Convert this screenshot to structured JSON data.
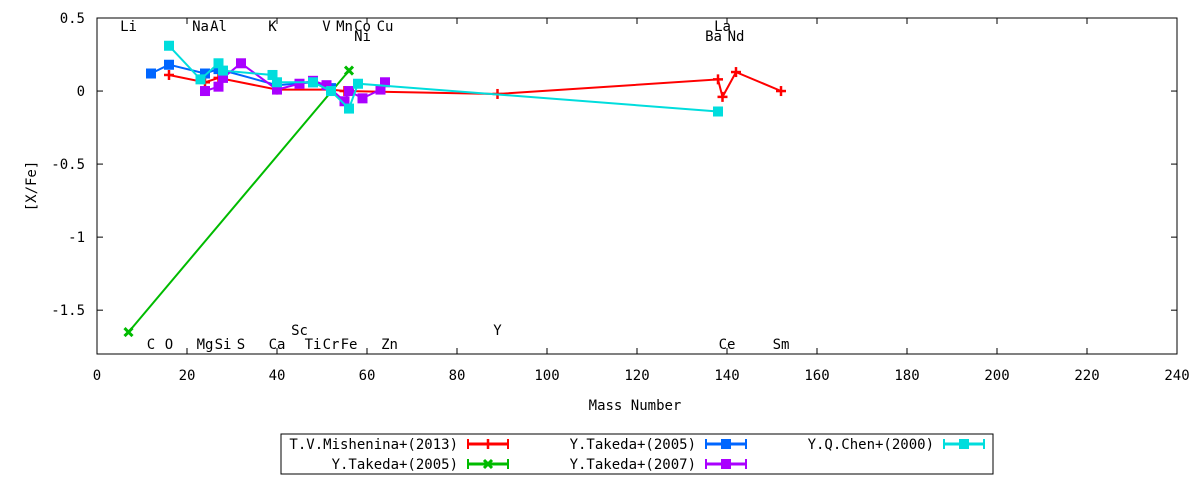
{
  "chart_data": {
    "type": "line",
    "title": "",
    "xlabel": "Mass Number",
    "ylabel": "[X/Fe]",
    "xlim": [
      0,
      240
    ],
    "ylim": [
      -1.8,
      0.5
    ],
    "xticks": [
      0,
      20,
      40,
      60,
      80,
      100,
      120,
      140,
      160,
      180,
      200,
      220,
      240
    ],
    "yticks": [
      0.5,
      0,
      -0.5,
      -1,
      -1.5
    ],
    "ytick_labels": [
      "0.5",
      "0",
      "-0.5",
      "-1",
      "-1.5"
    ],
    "grid": false,
    "legend_position": "bottom",
    "element_labels_top": [
      {
        "text": "Li",
        "x": 7,
        "row": 0
      },
      {
        "text": "Na",
        "x": 23,
        "row": 0
      },
      {
        "text": "Al",
        "x": 27,
        "row": 0
      },
      {
        "text": "K",
        "x": 39,
        "row": 0
      },
      {
        "text": "V",
        "x": 51,
        "row": 0
      },
      {
        "text": "Mn",
        "x": 55,
        "row": 0
      },
      {
        "text": "Co",
        "x": 59,
        "row": 0
      },
      {
        "text": "Cu",
        "x": 64,
        "row": 0
      },
      {
        "text": "Ni",
        "x": 59,
        "row": 1
      },
      {
        "text": "La",
        "x": 139,
        "row": 0
      },
      {
        "text": "Ba",
        "x": 137,
        "row": 1
      },
      {
        "text": "Nd",
        "x": 142,
        "row": 1
      }
    ],
    "element_labels_bottom": [
      {
        "text": "Sc",
        "x": 45,
        "row": 0
      },
      {
        "text": "Y",
        "x": 89,
        "row": 0
      },
      {
        "text": "C",
        "x": 12,
        "row": 1
      },
      {
        "text": "O",
        "x": 16,
        "row": 1
      },
      {
        "text": "Mg",
        "x": 24,
        "row": 1
      },
      {
        "text": "Si",
        "x": 28,
        "row": 1
      },
      {
        "text": "S",
        "x": 32,
        "row": 1
      },
      {
        "text": "Ca",
        "x": 40,
        "row": 1
      },
      {
        "text": "Ti",
        "x": 48,
        "row": 1
      },
      {
        "text": "Cr",
        "x": 52,
        "row": 1
      },
      {
        "text": "Fe",
        "x": 56,
        "row": 1
      },
      {
        "text": "Zn",
        "x": 65,
        "row": 1
      },
      {
        "text": "Ce",
        "x": 140,
        "row": 1
      },
      {
        "text": "Sm",
        "x": 152,
        "row": 1
      }
    ],
    "series": [
      {
        "name": "T.V.Mishenina+(2013)",
        "color": "#ff0000",
        "marker": "plus",
        "x": [
          16,
          24,
          27,
          40,
          52,
          55,
          89,
          138,
          139,
          142,
          152
        ],
        "y": [
          0.11,
          0.06,
          0.09,
          0.01,
          0.01,
          0.0,
          -0.02,
          0.08,
          -0.04,
          0.13,
          0.0
        ]
      },
      {
        "name": "Y.Takeda+(2005)",
        "color": "#00bb00",
        "marker": "x",
        "x": [
          7,
          56
        ],
        "y": [
          -1.65,
          0.14
        ]
      },
      {
        "name": "Y.Takeda+(2005)",
        "color": "#0066ff",
        "marker": "square",
        "x": [
          12,
          16,
          24,
          27,
          40,
          48,
          52
        ],
        "y": [
          0.12,
          0.18,
          0.12,
          0.15,
          0.04,
          0.06,
          0.02
        ]
      },
      {
        "name": "Y.Takeda+(2007)",
        "color": "#aa00ff",
        "marker": "square",
        "x": [
          24,
          27,
          28,
          32,
          40,
          45,
          48,
          51,
          55,
          56,
          59,
          63,
          64
        ],
        "y": [
          0.0,
          0.03,
          0.09,
          0.19,
          0.01,
          0.05,
          0.07,
          0.04,
          -0.07,
          0.0,
          -0.05,
          0.01,
          0.06
        ]
      },
      {
        "name": "Y.Q.Chen+(2000)",
        "color": "#00dddd",
        "marker": "square",
        "x": [
          16,
          23,
          27,
          28,
          39,
          40,
          48,
          52,
          56,
          58,
          138
        ],
        "y": [
          0.31,
          0.08,
          0.19,
          0.14,
          0.11,
          0.06,
          0.06,
          0.0,
          -0.12,
          0.05,
          -0.14
        ]
      }
    ]
  }
}
